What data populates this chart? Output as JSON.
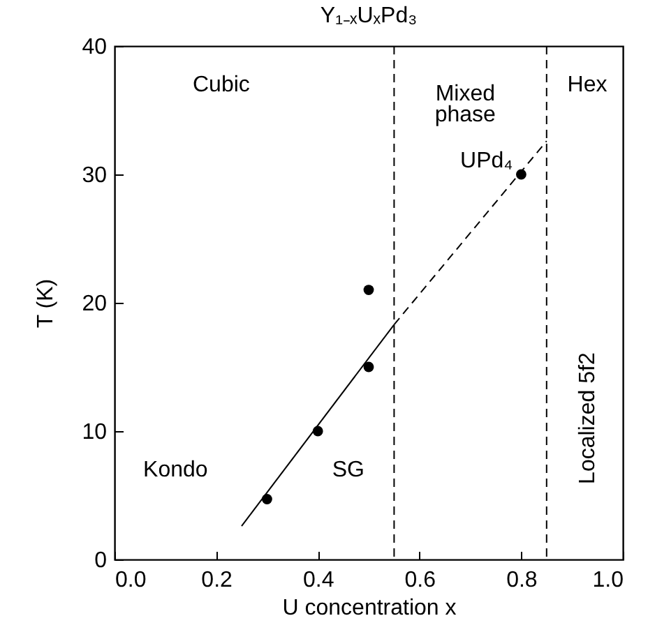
{
  "chart_data": {
    "type": "scatter",
    "title": "Y₁₋ₓUₓPd₃",
    "xlabel": "U concentration x",
    "ylabel": "T (K)",
    "xlim": [
      0,
      1
    ],
    "ylim": [
      0,
      40
    ],
    "xticks": [
      {
        "value": 0,
        "label": "0.0"
      },
      {
        "value": 0.2,
        "label": "0.2"
      },
      {
        "value": 0.4,
        "label": "0.4"
      },
      {
        "value": 0.6,
        "label": "0.6"
      },
      {
        "value": 0.8,
        "label": "0.8"
      },
      {
        "value": 1,
        "label": "1.0"
      }
    ],
    "yticks": [
      0,
      10,
      20,
      30,
      40
    ],
    "grid": false,
    "series": [
      {
        "color": "#000000",
        "marker": "circle",
        "x": [
          0.3,
          0.4,
          0.5,
          0.5,
          0.8
        ],
        "values": [
          4.7,
          10,
          15,
          21,
          30
        ]
      },
      {
        "type": "line",
        "color": "#000000",
        "marker": "none",
        "line_style": "solid",
        "x": [
          0.25,
          0.55
        ],
        "values": [
          2.6,
          18.3
        ]
      },
      {
        "type": "line",
        "color": "#000000",
        "marker": "none",
        "line_style": "dashed",
        "x": [
          0.55,
          0.85
        ],
        "values": [
          18.3,
          32.6
        ]
      }
    ],
    "ref_lines": [
      {
        "axis": "x",
        "value": 0.55,
        "color": "#000000",
        "line_style": "dashed"
      },
      {
        "axis": "x",
        "value": 0.85,
        "color": "#000000",
        "line_style": "dashed"
      }
    ],
    "annotations": [
      {
        "text": "UPd₄",
        "x": 0.8,
        "y": 30
      },
      "Cubic",
      "Mixed\nphase",
      "Hex",
      "Kondo",
      "SG",
      "Localized 5f2"
    ]
  }
}
